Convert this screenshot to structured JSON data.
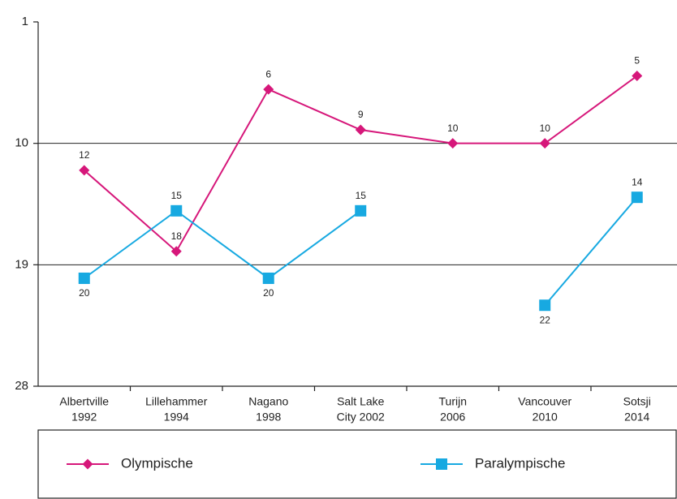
{
  "chart_data": {
    "type": "line",
    "categories": [
      [
        "Albertville",
        "1992"
      ],
      [
        "Lillehammer",
        "1994"
      ],
      [
        "Nagano",
        "1998"
      ],
      [
        "Salt Lake",
        "City 2002"
      ],
      [
        "Turijn",
        "2006"
      ],
      [
        "Vancouver",
        "2010"
      ],
      [
        "Sotsji",
        "2014"
      ]
    ],
    "series": [
      {
        "name": "Olympische",
        "color": "#d6177a",
        "marker": "diamond",
        "values": [
          12,
          18,
          6,
          9,
          10,
          10,
          5
        ]
      },
      {
        "name": "Paralympische",
        "color": "#17a9e1",
        "marker": "square",
        "values": [
          20,
          15,
          20,
          15,
          null,
          22,
          14
        ]
      }
    ],
    "ylim": [
      1,
      28
    ],
    "yticks": [
      1,
      10,
      19,
      28
    ],
    "y_inverted": true,
    "grid": true
  }
}
